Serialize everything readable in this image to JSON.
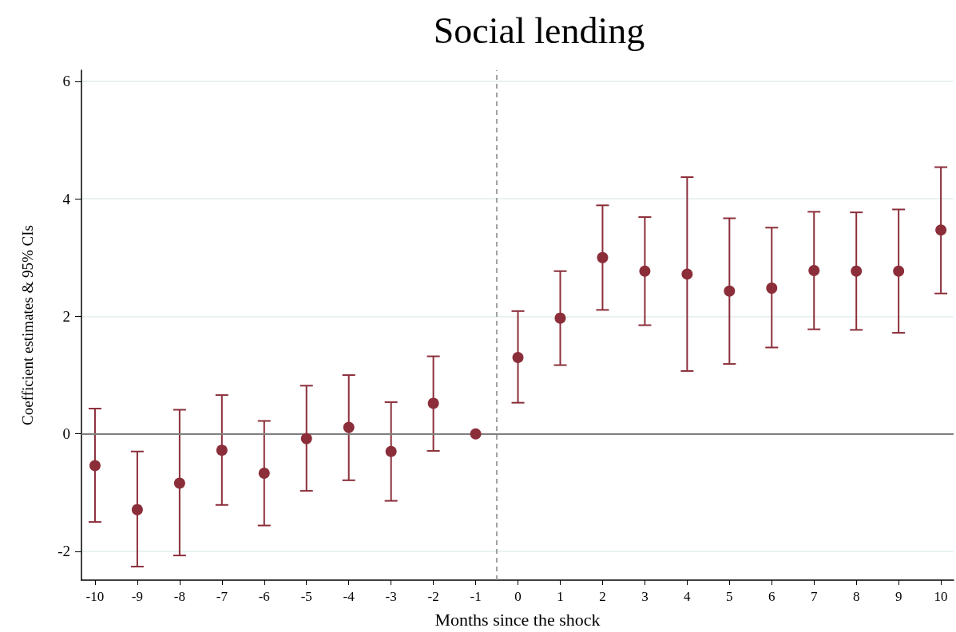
{
  "chart_data": {
    "type": "scatter",
    "title": "Social lending",
    "xlabel": "Months since the shock",
    "ylabel": "Coefficient estimates & 95% CIs",
    "x": [
      -10,
      -9,
      -8,
      -7,
      -6,
      -5,
      -4,
      -3,
      -2,
      -1,
      0,
      1,
      2,
      3,
      4,
      5,
      6,
      7,
      8,
      9,
      10
    ],
    "values": [
      -0.54,
      -1.29,
      -0.84,
      -0.28,
      -0.67,
      -0.08,
      0.11,
      -0.3,
      0.52,
      0,
      1.3,
      1.97,
      3.0,
      2.77,
      2.72,
      2.43,
      2.48,
      2.78,
      2.77,
      2.77,
      3.47
    ],
    "errors": [
      [
        -1.5,
        0.43
      ],
      [
        -2.26,
        -0.3
      ],
      [
        -2.07,
        0.41
      ],
      [
        -1.21,
        0.66
      ],
      [
        -1.56,
        0.22
      ],
      [
        -0.97,
        0.82
      ],
      [
        -0.79,
        1.0
      ],
      [
        -1.14,
        0.54
      ],
      [
        -0.29,
        1.32
      ],
      null,
      [
        0.53,
        2.09
      ],
      [
        1.17,
        2.77
      ],
      [
        2.11,
        3.89
      ],
      [
        1.85,
        3.69
      ],
      [
        1.07,
        4.37
      ],
      [
        1.19,
        3.67
      ],
      [
        1.47,
        3.51
      ],
      [
        1.78,
        3.78
      ],
      [
        1.77,
        3.77
      ],
      [
        1.72,
        3.82
      ],
      [
        2.39,
        4.54
      ]
    ],
    "color": "#8b2e3a",
    "marker": "circle",
    "xlim": [
      -10.32,
      10.3
    ],
    "xticks": [
      -10,
      -9,
      -8,
      -7,
      -6,
      -5,
      -4,
      -3,
      -2,
      -1,
      0,
      1,
      2,
      3,
      4,
      5,
      6,
      7,
      8,
      9,
      10
    ],
    "ylim": [
      -2.49,
      6.19
    ],
    "yticks": [
      -2,
      0,
      2,
      4,
      6
    ],
    "grid": "y",
    "ref_lines": [
      {
        "axis": "y",
        "value": 0,
        "color": "#7f7f7f",
        "line_style": "solid"
      },
      {
        "axis": "x",
        "value": -0.5,
        "color": "#8c8c8c",
        "line_style": "dashed"
      }
    ]
  }
}
